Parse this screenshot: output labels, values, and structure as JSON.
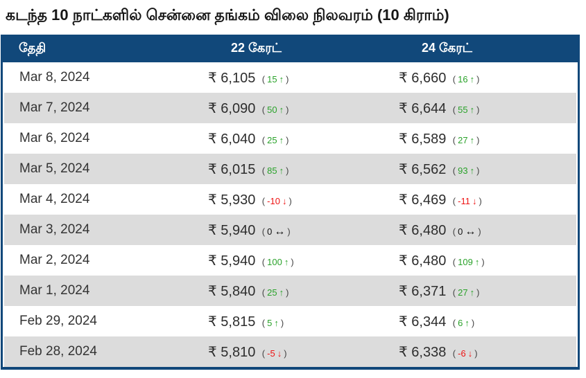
{
  "title": "கடந்த 10 நாட்களில் சென்னை தங்கம் விலை நிலவரம் (10 கிராம்)",
  "punct": {
    "open": "(",
    "close": ")"
  },
  "colors": {
    "header_bg": "#11487A",
    "border": "#11487A",
    "stripe_row": "#DCDCDC",
    "up_green": "#2AA22A",
    "down_red": "#EE1313",
    "neutral_black": "#111111"
  },
  "icons": {
    "up": "↑",
    "down": "↓",
    "neutral": "↔"
  },
  "table": {
    "columns": [
      "தேதி",
      "22 கேரட்",
      "24 கேரட்"
    ],
    "rows": [
      {
        "date": "Mar 8, 2024",
        "k22": {
          "price": "₹ 6,105",
          "change": "15",
          "dir": "up",
          "arrow": "↑"
        },
        "k24": {
          "price": "₹ 6,660",
          "change": "16",
          "dir": "up",
          "arrow": "↑"
        }
      },
      {
        "date": "Mar 7, 2024",
        "k22": {
          "price": "₹ 6,090",
          "change": "50",
          "dir": "up",
          "arrow": "↑"
        },
        "k24": {
          "price": "₹ 6,644",
          "change": "55",
          "dir": "up",
          "arrow": "↑"
        }
      },
      {
        "date": "Mar 6, 2024",
        "k22": {
          "price": "₹ 6,040",
          "change": "25",
          "dir": "up",
          "arrow": "↑"
        },
        "k24": {
          "price": "₹ 6,589",
          "change": "27",
          "dir": "up",
          "arrow": "↑"
        }
      },
      {
        "date": "Mar 5, 2024",
        "k22": {
          "price": "₹ 6,015",
          "change": "85",
          "dir": "up",
          "arrow": "↑"
        },
        "k24": {
          "price": "₹ 6,562",
          "change": "93",
          "dir": "up",
          "arrow": "↑"
        }
      },
      {
        "date": "Mar 4, 2024",
        "k22": {
          "price": "₹ 5,930",
          "change": "-10",
          "dir": "down",
          "arrow": "↓"
        },
        "k24": {
          "price": "₹ 6,469",
          "change": "-11",
          "dir": "down",
          "arrow": "↓"
        }
      },
      {
        "date": "Mar 3, 2024",
        "k22": {
          "price": "₹ 5,940",
          "change": "0",
          "dir": "neutral",
          "arrow": "↔"
        },
        "k24": {
          "price": "₹ 6,480",
          "change": "0",
          "dir": "neutral",
          "arrow": "↔"
        }
      },
      {
        "date": "Mar 2, 2024",
        "k22": {
          "price": "₹ 5,940",
          "change": "100",
          "dir": "up",
          "arrow": "↑"
        },
        "k24": {
          "price": "₹ 6,480",
          "change": "109",
          "dir": "up",
          "arrow": "↑"
        }
      },
      {
        "date": "Mar 1, 2024",
        "k22": {
          "price": "₹ 5,840",
          "change": "25",
          "dir": "up",
          "arrow": "↑"
        },
        "k24": {
          "price": "₹ 6,371",
          "change": "27",
          "dir": "up",
          "arrow": "↑"
        }
      },
      {
        "date": "Feb 29, 2024",
        "k22": {
          "price": "₹ 5,815",
          "change": "5",
          "dir": "up",
          "arrow": "↑"
        },
        "k24": {
          "price": "₹ 6,344",
          "change": "6",
          "dir": "up",
          "arrow": "↑"
        }
      },
      {
        "date": "Feb 28, 2024",
        "k22": {
          "price": "₹ 5,810",
          "change": "-5",
          "dir": "down",
          "arrow": "↓"
        },
        "k24": {
          "price": "₹ 6,338",
          "change": "-6",
          "dir": "down",
          "arrow": "↓"
        }
      }
    ]
  },
  "chart_data": {
    "type": "table",
    "title": "கடந்த 10 நாட்களில் சென்னை தங்கம் விலை நிலவரம் (10 கிராம்)",
    "columns": [
      "தேதி",
      "22 கேரட்",
      "24 கேரட்"
    ],
    "rows": [
      {
        "date": "Mar 8, 2024",
        "k22_price": 6105,
        "k22_change": 15,
        "k24_price": 6660,
        "k24_change": 16
      },
      {
        "date": "Mar 7, 2024",
        "k22_price": 6090,
        "k22_change": 50,
        "k24_price": 6644,
        "k24_change": 55
      },
      {
        "date": "Mar 6, 2024",
        "k22_price": 6040,
        "k22_change": 25,
        "k24_price": 6589,
        "k24_change": 27
      },
      {
        "date": "Mar 5, 2024",
        "k22_price": 6015,
        "k22_change": 85,
        "k24_price": 6562,
        "k24_change": 93
      },
      {
        "date": "Mar 4, 2024",
        "k22_price": 5930,
        "k22_change": -10,
        "k24_price": 6469,
        "k24_change": -11
      },
      {
        "date": "Mar 3, 2024",
        "k22_price": 5940,
        "k22_change": 0,
        "k24_price": 6480,
        "k24_change": 0
      },
      {
        "date": "Mar 2, 2024",
        "k22_price": 5940,
        "k22_change": 100,
        "k24_price": 6480,
        "k24_change": 109
      },
      {
        "date": "Mar 1, 2024",
        "k22_price": 5840,
        "k22_change": 25,
        "k24_price": 6371,
        "k24_change": 27
      },
      {
        "date": "Feb 29, 2024",
        "k22_price": 5815,
        "k22_change": 5,
        "k24_price": 6344,
        "k24_change": 6
      },
      {
        "date": "Feb 28, 2024",
        "k22_price": 5810,
        "k22_change": -5,
        "k24_price": 6338,
        "k24_change": -6
      }
    ]
  }
}
